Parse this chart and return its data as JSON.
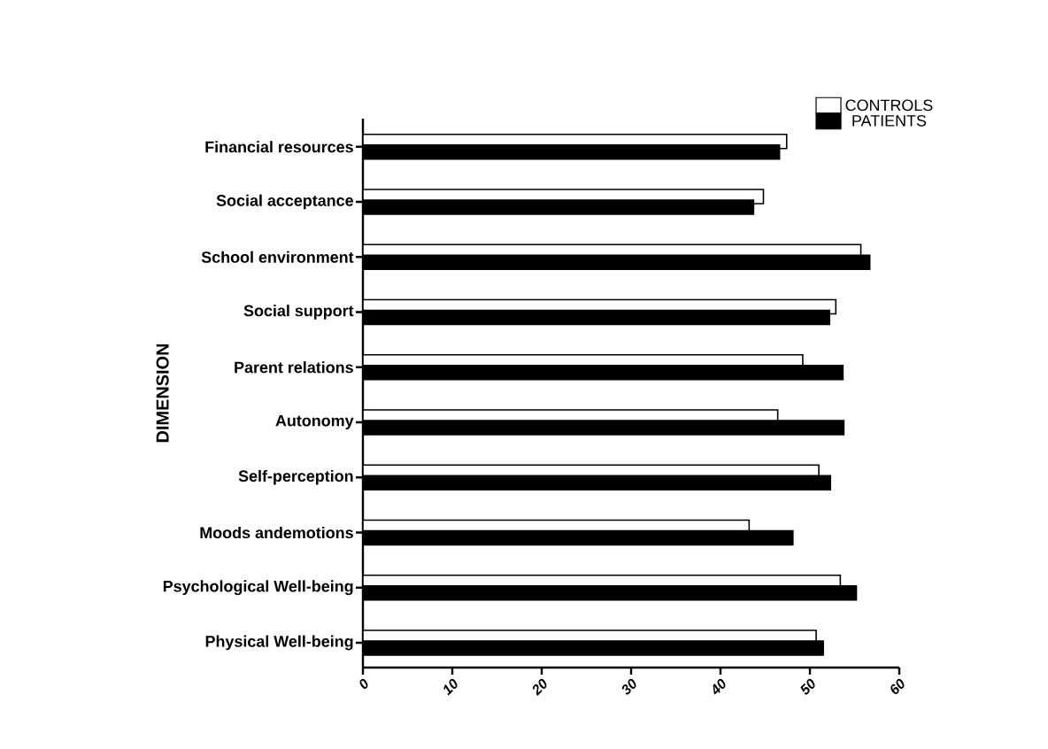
{
  "chart_data": {
    "type": "bar",
    "orientation": "horizontal",
    "ylabel": "DIMENSION",
    "categories": [
      "Financial resources",
      "Social acceptance",
      "School environment",
      "Social support",
      "Parent relations",
      "Autonomy",
      "Self-perception",
      "Moods andemotions",
      "Psychological Well-being",
      "Physical Well-being"
    ],
    "series": [
      {
        "name": "CONTROLS",
        "color": "#ffffff",
        "values": [
          47.4,
          44.8,
          55.7,
          52.9,
          49.2,
          46.4,
          51.0,
          43.2,
          53.4,
          50.7
        ]
      },
      {
        "name": "PATIENTS",
        "color": "#000000",
        "values": [
          46.6,
          43.7,
          56.7,
          52.2,
          53.7,
          53.8,
          52.3,
          48.1,
          55.2,
          51.5
        ]
      }
    ],
    "xlim": [
      0,
      60
    ],
    "xticks": [
      0,
      10,
      20,
      30,
      40,
      50,
      60
    ],
    "legend": "top right",
    "grid": false
  }
}
